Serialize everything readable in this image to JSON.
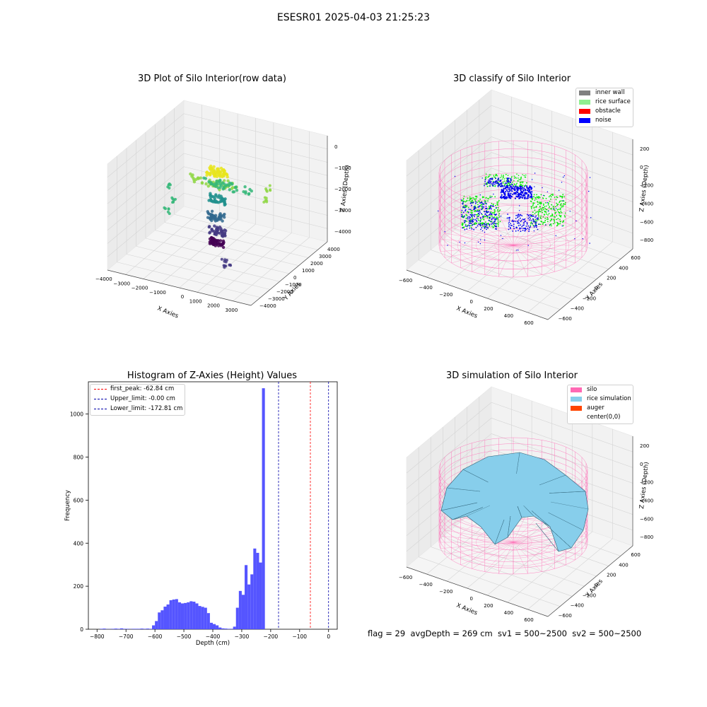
{
  "suptitle": "ESESR01 2025-04-03 21:25:23",
  "footer": "flag = 29  avgDepth = 269 cm  sv1 = 500~2500  sv2 = 500~2500",
  "chart_data": [
    {
      "type": "scatter",
      "title": "3D Plot of Silo Interior(row data)",
      "xlabel": "X Axies",
      "ylabel": "Y Axies",
      "zlabel": "Z Axies (Depth)",
      "xticks": [
        "−4000",
        "−3000",
        "−2000",
        "−1000",
        "0",
        "1000",
        "2000",
        "3000"
      ],
      "yticks": [
        "−4000",
        "−3000",
        "−2000",
        "−1000",
        "0",
        "1000",
        "2000",
        "3000",
        "4000"
      ],
      "zticks": [
        "0",
        "−1000",
        "−2000",
        "−3000",
        "−4000"
      ],
      "colormap": "viridis",
      "clusters": [
        {
          "x": 0,
          "y": 0,
          "z": -800,
          "color": "#e8e51c"
        },
        {
          "x": -200,
          "y": 0,
          "z": -1300,
          "color": "#8fd744"
        },
        {
          "x": 600,
          "y": 0,
          "z": -1300,
          "color": "#35b779"
        },
        {
          "x": 0,
          "y": 0,
          "z": -2000,
          "color": "#21908d"
        },
        {
          "x": -100,
          "y": 0,
          "z": -2800,
          "color": "#31688e"
        },
        {
          "x": 0,
          "y": 0,
          "z": -3400,
          "color": "#443a83"
        },
        {
          "x": 0,
          "y": 0,
          "z": -3900,
          "color": "#440154"
        }
      ]
    },
    {
      "type": "scatter",
      "title": "3D classify of Silo Interior",
      "xlabel": "X Axies",
      "ylabel": "Y Axies",
      "zlabel": "Z Axies (Depth)",
      "xticks": [
        "−600",
        "−400",
        "−200",
        "0",
        "200",
        "400",
        "600"
      ],
      "yticks": [
        "−600",
        "−400",
        "−200",
        "0",
        "200",
        "400",
        "600"
      ],
      "zticks": [
        "200",
        "0",
        "−200",
        "−400",
        "−600",
        "−800"
      ],
      "legend": [
        {
          "label": "inner wall",
          "color": "#808080"
        },
        {
          "label": "rice surface",
          "color": "#90ee90"
        },
        {
          "label": "obstacle",
          "color": "#ff0000"
        },
        {
          "label": "noise",
          "color": "#0000ff"
        }
      ],
      "legend_loc": "upper right"
    },
    {
      "type": "bar",
      "title": "Histogram of Z-Axies (Height) Values",
      "xlabel": "Depth (cm)",
      "ylabel": "Frequency",
      "xlim": [
        -800,
        0
      ],
      "ylim": [
        0,
        1150
      ],
      "xticks": [
        "−800",
        "−700",
        "−600",
        "−500",
        "−400",
        "−300",
        "−200",
        "−100",
        "0"
      ],
      "yticks": [
        "0",
        "200",
        "400",
        "600",
        "800",
        "1000"
      ],
      "bin_width": 10,
      "bin_starts": [
        -790,
        -780,
        -770,
        -760,
        -750,
        -740,
        -730,
        -720,
        -710,
        -700,
        -690,
        -680,
        -670,
        -660,
        -650,
        -640,
        -630,
        -620,
        -610,
        -600,
        -590,
        -580,
        -570,
        -560,
        -550,
        -540,
        -530,
        -520,
        -510,
        -500,
        -490,
        -480,
        -470,
        -460,
        -450,
        -440,
        -430,
        -420,
        -410,
        -400,
        -390,
        -380,
        -370,
        -360,
        -350,
        -340,
        -330,
        -320,
        -310,
        -300,
        -290,
        -280,
        -270,
        -260,
        -250,
        -240,
        -230,
        -220,
        -210,
        -200,
        -190,
        -180,
        -170,
        -160,
        -150,
        -140,
        -130,
        -120,
        -110,
        -100,
        -90,
        -80,
        -70,
        -60,
        -50,
        -40,
        -30,
        -20,
        -10,
        0
      ],
      "values": [
        2,
        3,
        1,
        1,
        2,
        3,
        2,
        4,
        2,
        2,
        1,
        2,
        2,
        2,
        3,
        2,
        3,
        2,
        18,
        38,
        78,
        88,
        105,
        115,
        135,
        138,
        140,
        125,
        120,
        122,
        125,
        130,
        128,
        120,
        108,
        104,
        100,
        75,
        30,
        24,
        18,
        8,
        4,
        3,
        2,
        2,
        12,
        100,
        178,
        160,
        298,
        208,
        255,
        375,
        355,
        310,
        1120,
        0,
        0,
        0,
        0,
        0,
        0,
        0,
        0,
        0,
        0,
        0,
        0,
        0,
        0,
        0,
        0,
        0,
        0,
        0,
        0,
        0,
        0,
        0
      ],
      "bar_color": "#4c4cff",
      "vlines": [
        {
          "label": "first_peak: -62.84 cm",
          "x": -62.84,
          "color": "#ff0000"
        },
        {
          "label": "Upper_limit: -0.00 cm",
          "x": 0,
          "color": "#0000aa"
        },
        {
          "label": "Lower_limit: -172.81 cm",
          "x": -172.81,
          "color": "#0000aa"
        }
      ],
      "legend_loc": "upper left"
    },
    {
      "type": "surface",
      "title": "3D simulation of Silo Interior",
      "xlabel": "X Axies",
      "ylabel": "Y Axies",
      "zlabel": "Z Axies (Depth)",
      "xticks": [
        "−600",
        "−400",
        "−200",
        "0",
        "200",
        "400",
        "600"
      ],
      "yticks": [
        "−600",
        "−400",
        "−200",
        "0",
        "200",
        "400",
        "600"
      ],
      "zticks": [
        "200",
        "0",
        "−200",
        "−400",
        "−600",
        "−800"
      ],
      "legend": [
        {
          "label": "silo",
          "color": "#ff69b4"
        },
        {
          "label": "rice simulation",
          "color": "#87ceeb"
        },
        {
          "label": "auger",
          "color": "#ff4500"
        },
        {
          "label": "center(0,0)",
          "color": "#ffffff"
        }
      ],
      "legend_loc": "upper right"
    }
  ]
}
